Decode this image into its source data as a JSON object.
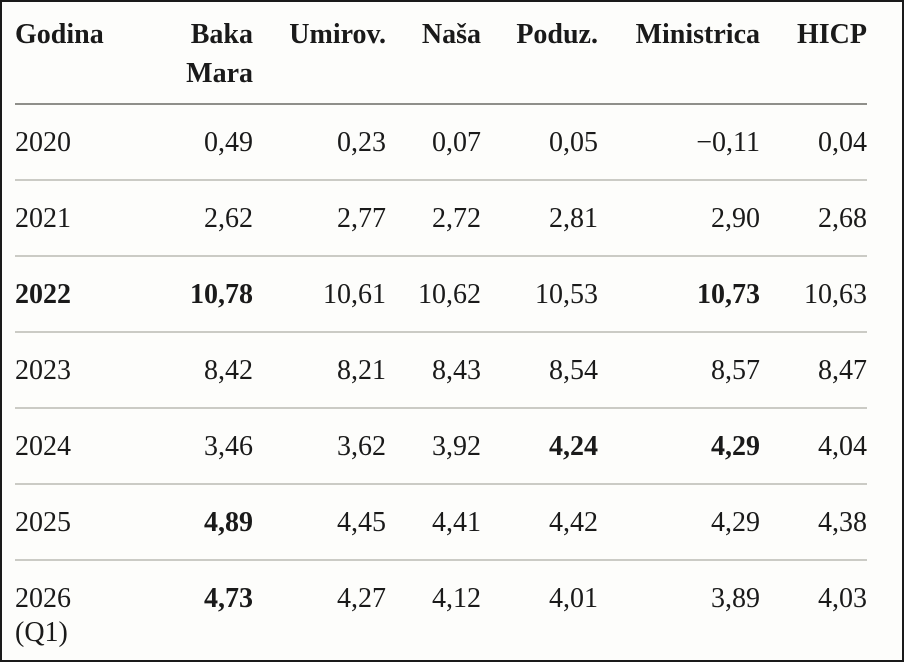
{
  "meta": {
    "colors": {
      "background": "#fdfdfb",
      "text": "#1a1a1a",
      "frame_border": "#1a1a1a",
      "header_rule": "#8f8f8a",
      "row_rule": "#cbcbc5",
      "bottom_rule": "#222222"
    }
  },
  "table": {
    "columns": [
      {
        "key": "godina",
        "label": "Godina",
        "align": "left"
      },
      {
        "key": "baka-mara",
        "label": "Baka Mara",
        "align": "right"
      },
      {
        "key": "umirov",
        "label": "Umirov.",
        "align": "right"
      },
      {
        "key": "nasa",
        "label": "Naša",
        "align": "right"
      },
      {
        "key": "poduz",
        "label": "Poduz.",
        "align": "right"
      },
      {
        "key": "ministrica",
        "label": "Ministrica",
        "align": "right"
      },
      {
        "key": "hicp",
        "label": "HICP",
        "align": "right"
      }
    ],
    "rows": [
      {
        "year": "2020",
        "year_bold": false,
        "cells": [
          {
            "v": "0,49",
            "bold": false
          },
          {
            "v": "0,23",
            "bold": false
          },
          {
            "v": "0,07",
            "bold": false
          },
          {
            "v": "0,05",
            "bold": false
          },
          {
            "v": "−0,11",
            "bold": false
          },
          {
            "v": "0,04",
            "bold": false
          }
        ]
      },
      {
        "year": "2021",
        "year_bold": false,
        "cells": [
          {
            "v": "2,62",
            "bold": false
          },
          {
            "v": "2,77",
            "bold": false
          },
          {
            "v": "2,72",
            "bold": false
          },
          {
            "v": "2,81",
            "bold": false
          },
          {
            "v": "2,90",
            "bold": false
          },
          {
            "v": "2,68",
            "bold": false
          }
        ]
      },
      {
        "year": "2022",
        "year_bold": true,
        "cells": [
          {
            "v": "10,78",
            "bold": true
          },
          {
            "v": "10,61",
            "bold": false
          },
          {
            "v": "10,62",
            "bold": false
          },
          {
            "v": "10,53",
            "bold": false
          },
          {
            "v": "10,73",
            "bold": true
          },
          {
            "v": "10,63",
            "bold": false
          }
        ]
      },
      {
        "year": "2023",
        "year_bold": false,
        "cells": [
          {
            "v": "8,42",
            "bold": false
          },
          {
            "v": "8,21",
            "bold": false
          },
          {
            "v": "8,43",
            "bold": false
          },
          {
            "v": "8,54",
            "bold": false
          },
          {
            "v": "8,57",
            "bold": false
          },
          {
            "v": "8,47",
            "bold": false
          }
        ]
      },
      {
        "year": "2024",
        "year_bold": false,
        "cells": [
          {
            "v": "3,46",
            "bold": false
          },
          {
            "v": "3,62",
            "bold": false
          },
          {
            "v": "3,92",
            "bold": false
          },
          {
            "v": "4,24",
            "bold": true
          },
          {
            "v": "4,29",
            "bold": true
          },
          {
            "v": "4,04",
            "bold": false
          }
        ]
      },
      {
        "year": "2025",
        "year_bold": false,
        "cells": [
          {
            "v": "4,89",
            "bold": true
          },
          {
            "v": "4,45",
            "bold": false
          },
          {
            "v": "4,41",
            "bold": false
          },
          {
            "v": "4,42",
            "bold": false
          },
          {
            "v": "4,29",
            "bold": false
          },
          {
            "v": "4,38",
            "bold": false
          }
        ]
      },
      {
        "year": "2026 (Q1)",
        "year_bold": false,
        "cells": [
          {
            "v": "4,73",
            "bold": true
          },
          {
            "v": "4,27",
            "bold": false
          },
          {
            "v": "4,12",
            "bold": false
          },
          {
            "v": "4,01",
            "bold": false
          },
          {
            "v": "3,89",
            "bold": false
          },
          {
            "v": "4,03",
            "bold": false
          }
        ]
      }
    ]
  },
  "chart_data": {
    "type": "table",
    "title": "",
    "categories": [
      "2020",
      "2021",
      "2022",
      "2023",
      "2024",
      "2025",
      "2026 (Q1)"
    ],
    "series": [
      {
        "name": "Baka Mara",
        "values": [
          0.49,
          2.62,
          10.78,
          8.42,
          3.46,
          4.89,
          4.73
        ]
      },
      {
        "name": "Umirov.",
        "values": [
          0.23,
          2.77,
          10.61,
          8.21,
          3.62,
          4.45,
          4.27
        ]
      },
      {
        "name": "Naša",
        "values": [
          0.07,
          2.72,
          10.62,
          8.43,
          3.92,
          4.41,
          4.12
        ]
      },
      {
        "name": "Poduz.",
        "values": [
          0.05,
          2.81,
          10.53,
          8.54,
          4.24,
          4.42,
          4.01
        ]
      },
      {
        "name": "Ministrica",
        "values": [
          -0.11,
          2.9,
          10.73,
          8.57,
          4.29,
          4.29,
          3.89
        ]
      },
      {
        "name": "HICP",
        "values": [
          0.04,
          2.68,
          10.63,
          8.47,
          4.04,
          4.38,
          4.03
        ]
      }
    ],
    "decimal_separator": ",",
    "row_label_column": "Godina"
  }
}
